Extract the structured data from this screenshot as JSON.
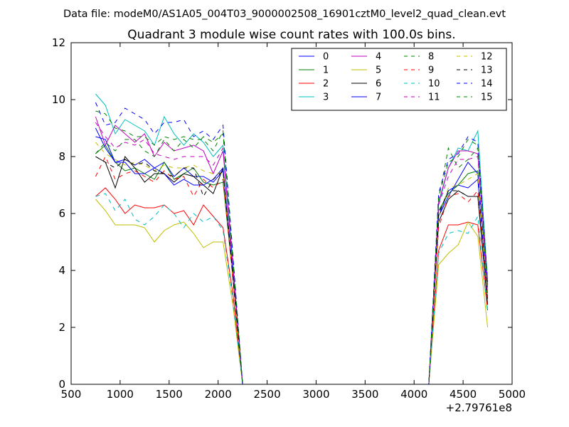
{
  "supertitle": "Data file: modeM0/AS1A05_004T03_9000002508_16901cztM0_level2_quad_clean.evt",
  "chart_data": {
    "type": "line",
    "title": "Quadrant 3 module wise count rates with 100.0s bins.",
    "xlabel": "",
    "ylabel": "",
    "x_offset_label": "+2.79761e8",
    "xlim": [
      500,
      5000
    ],
    "ylim": [
      0,
      12
    ],
    "xticks": [
      500,
      1000,
      1500,
      2000,
      2500,
      3000,
      3500,
      4000,
      4500,
      5000
    ],
    "yticks": [
      0,
      2,
      4,
      6,
      8,
      10,
      12
    ],
    "legend_position": "top-right",
    "x": [
      750,
      850,
      950,
      1050,
      1150,
      1250,
      1350,
      1450,
      1550,
      1650,
      1750,
      1850,
      1950,
      2050,
      2150,
      2250,
      2350,
      2450,
      2550,
      2650,
      2750,
      2850,
      2950,
      3050,
      3150,
      3250,
      3350,
      3450,
      3550,
      3650,
      3750,
      3850,
      3950,
      4050,
      4150,
      4250,
      4350,
      4450,
      4550,
      4650,
      4750
    ],
    "series": [
      {
        "name": "0",
        "color": "#0000ff",
        "dash": "solid",
        "values": [
          8.7,
          8.6,
          7.8,
          7.9,
          7.7,
          7.9,
          7.6,
          7.8,
          7.3,
          7.6,
          7.3,
          7.3,
          7.1,
          7.5,
          3.9,
          0,
          0,
          0,
          0,
          0,
          0,
          0,
          0,
          0,
          0,
          0,
          0,
          0,
          0,
          0,
          0,
          0,
          0,
          0,
          0,
          5.9,
          6.8,
          7.0,
          6.9,
          7.2,
          3.0
        ]
      },
      {
        "name": "1",
        "color": "#008000",
        "dash": "solid",
        "values": [
          8.1,
          8.4,
          7.8,
          7.5,
          7.6,
          7.4,
          7.2,
          7.8,
          7.2,
          7.4,
          7.6,
          7.1,
          7.0,
          7.1,
          3.8,
          0,
          0,
          0,
          0,
          0,
          0,
          0,
          0,
          0,
          0,
          0,
          0,
          0,
          0,
          0,
          0,
          0,
          0,
          0,
          0,
          6.1,
          6.7,
          7.0,
          7.4,
          7.5,
          3.2
        ]
      },
      {
        "name": "2",
        "color": "#ff0000",
        "dash": "solid",
        "values": [
          6.6,
          6.9,
          6.5,
          6.0,
          6.3,
          6.2,
          6.2,
          6.3,
          6.0,
          6.1,
          5.6,
          6.3,
          5.9,
          5.5,
          3.2,
          0,
          0,
          0,
          0,
          0,
          0,
          0,
          0,
          0,
          0,
          0,
          0,
          0,
          0,
          0,
          0,
          0,
          0,
          0,
          0,
          4.7,
          5.6,
          5.6,
          5.7,
          5.6,
          2.6
        ]
      },
      {
        "name": "3",
        "color": "#00bfbf",
        "dash": "solid",
        "values": [
          10.2,
          9.8,
          8.8,
          9.3,
          9.1,
          8.9,
          8.4,
          9.4,
          8.8,
          8.4,
          8.8,
          8.5,
          8.0,
          8.4,
          4.3,
          0,
          0,
          0,
          0,
          0,
          0,
          0,
          0,
          0,
          0,
          0,
          0,
          0,
          0,
          0,
          0,
          0,
          0,
          0,
          0,
          6.3,
          7.6,
          8.3,
          8.2,
          8.9,
          3.6
        ]
      },
      {
        "name": "4",
        "color": "#bf00bf",
        "dash": "solid",
        "values": [
          9.4,
          8.4,
          9.1,
          8.8,
          8.5,
          8.8,
          8.0,
          8.5,
          8.2,
          8.3,
          8.4,
          8.2,
          7.4,
          8.2,
          4.2,
          0,
          0,
          0,
          0,
          0,
          0,
          0,
          0,
          0,
          0,
          0,
          0,
          0,
          0,
          0,
          0,
          0,
          0,
          0,
          0,
          6.4,
          7.6,
          8.2,
          8.2,
          8.1,
          3.5
        ]
      },
      {
        "name": "5",
        "color": "#bfbf00",
        "dash": "solid",
        "values": [
          6.5,
          6.1,
          5.6,
          5.6,
          5.6,
          5.5,
          5.0,
          5.4,
          5.6,
          5.7,
          5.3,
          4.8,
          5.0,
          5.0,
          2.8,
          0,
          0,
          0,
          0,
          0,
          0,
          0,
          0,
          0,
          0,
          0,
          0,
          0,
          0,
          0,
          0,
          0,
          0,
          0,
          0,
          4.2,
          4.6,
          4.9,
          5.7,
          5.2,
          2.0
        ]
      },
      {
        "name": "6",
        "color": "#000000",
        "dash": "solid",
        "values": [
          8.0,
          7.8,
          6.9,
          8.0,
          7.6,
          7.1,
          7.4,
          7.4,
          7.1,
          7.4,
          7.3,
          7.0,
          6.7,
          7.6,
          3.8,
          0,
          0,
          0,
          0,
          0,
          0,
          0,
          0,
          0,
          0,
          0,
          0,
          0,
          0,
          0,
          0,
          0,
          0,
          0,
          0,
          5.7,
          6.5,
          6.8,
          6.6,
          6.6,
          2.8
        ]
      },
      {
        "name": "7",
        "color": "#0000ff",
        "dash": "solid",
        "values": [
          9.0,
          8.3,
          7.8,
          7.8,
          7.4,
          7.4,
          7.6,
          7.4,
          7.0,
          7.2,
          7.0,
          7.0,
          7.2,
          7.6,
          3.9,
          0,
          0,
          0,
          0,
          0,
          0,
          0,
          0,
          0,
          0,
          0,
          0,
          0,
          0,
          0,
          0,
          0,
          0,
          0,
          0,
          5.9,
          6.6,
          7.2,
          7.8,
          7.4,
          3.0
        ]
      },
      {
        "name": "8",
        "color": "#008000",
        "dash": "dashed",
        "values": [
          8.1,
          8.5,
          8.2,
          8.6,
          8.6,
          8.2,
          8.0,
          8.6,
          8.2,
          8.6,
          8.3,
          8.7,
          8.5,
          8.8,
          4.4,
          0,
          0,
          0,
          0,
          0,
          0,
          0,
          0,
          0,
          0,
          0,
          0,
          0,
          0,
          0,
          0,
          0,
          0,
          0,
          0,
          6.5,
          8.3,
          7.6,
          7.9,
          8.3,
          3.5
        ]
      },
      {
        "name": "9",
        "color": "#ff0000",
        "dash": "dashed",
        "values": [
          7.3,
          8.0,
          7.2,
          7.4,
          7.5,
          7.3,
          7.1,
          7.5,
          7.2,
          7.3,
          6.6,
          7.2,
          6.9,
          7.2,
          3.7,
          0,
          0,
          0,
          0,
          0,
          0,
          0,
          0,
          0,
          0,
          0,
          0,
          0,
          0,
          0,
          0,
          0,
          0,
          0,
          0,
          5.5,
          6.6,
          6.7,
          6.4,
          6.8,
          2.9
        ]
      },
      {
        "name": "10",
        "color": "#00bfbf",
        "dash": "dashed",
        "values": [
          6.6,
          6.7,
          6.1,
          6.5,
          5.8,
          5.6,
          5.9,
          6.3,
          6.0,
          5.5,
          6.0,
          5.7,
          5.9,
          5.4,
          3.0,
          0,
          0,
          0,
          0,
          0,
          0,
          0,
          0,
          0,
          0,
          0,
          0,
          0,
          0,
          0,
          0,
          0,
          0,
          0,
          0,
          4.6,
          5.3,
          5.4,
          5.3,
          5.9,
          2.5
        ]
      },
      {
        "name": "11",
        "color": "#bf00bf",
        "dash": "dashed",
        "values": [
          9.2,
          8.7,
          8.3,
          8.5,
          8.4,
          8.6,
          8.1,
          8.0,
          7.9,
          8.0,
          8.0,
          8.0,
          7.7,
          8.3,
          4.2,
          0,
          0,
          0,
          0,
          0,
          0,
          0,
          0,
          0,
          0,
          0,
          0,
          0,
          0,
          0,
          0,
          0,
          0,
          0,
          0,
          6.3,
          7.3,
          7.9,
          7.9,
          8.0,
          3.4
        ]
      },
      {
        "name": "12",
        "color": "#bfbf00",
        "dash": "dashed",
        "values": [
          8.5,
          8.1,
          7.9,
          7.7,
          7.8,
          7.7,
          7.5,
          7.7,
          7.6,
          7.6,
          7.7,
          7.5,
          7.4,
          7.4,
          3.8,
          0,
          0,
          0,
          0,
          0,
          0,
          0,
          0,
          0,
          0,
          0,
          0,
          0,
          0,
          0,
          0,
          0,
          0,
          0,
          0,
          5.9,
          6.9,
          7.0,
          7.2,
          7.4,
          3.0
        ]
      },
      {
        "name": "13",
        "color": "#000000",
        "dash": "dashed",
        "values": [
          8.0,
          7.8,
          7.6,
          7.9,
          7.7,
          7.8,
          7.5,
          7.4,
          7.3,
          7.6,
          7.6,
          6.6,
          7.2,
          7.5,
          3.8,
          0,
          0,
          0,
          0,
          0,
          0,
          0,
          0,
          0,
          0,
          0,
          0,
          0,
          0,
          0,
          0,
          0,
          0,
          0,
          0,
          6.0,
          6.8,
          6.8,
          6.6,
          6.6,
          2.8
        ]
      },
      {
        "name": "14",
        "color": "#0000ff",
        "dash": "dashed",
        "values": [
          9.9,
          9.1,
          9.2,
          9.7,
          9.5,
          9.3,
          8.8,
          9.2,
          9.2,
          9.3,
          8.7,
          8.9,
          8.6,
          9.1,
          4.6,
          0,
          0,
          0,
          0,
          0,
          0,
          0,
          0,
          0,
          0,
          0,
          0,
          0,
          0,
          0,
          0,
          0,
          0,
          0,
          0,
          6.7,
          7.9,
          8.1,
          8.7,
          8.5,
          3.6
        ]
      },
      {
        "name": "15",
        "color": "#008000",
        "dash": "dashed",
        "values": [
          9.6,
          9.5,
          9.0,
          8.9,
          8.7,
          8.7,
          8.4,
          8.7,
          8.6,
          8.7,
          8.6,
          8.6,
          8.2,
          8.9,
          4.5,
          0,
          0,
          0,
          0,
          0,
          0,
          0,
          0,
          0,
          0,
          0,
          0,
          0,
          0,
          0,
          0,
          0,
          0,
          0,
          0,
          6.6,
          7.8,
          8.0,
          8.6,
          8.4,
          3.6
        ]
      }
    ]
  }
}
